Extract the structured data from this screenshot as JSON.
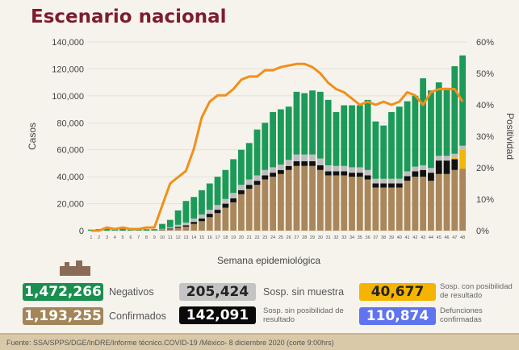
{
  "title": "Escenario nacional",
  "chart_data": {
    "type": "bar",
    "stacked": true,
    "title": "Escenario nacional",
    "xlabel": "Semana epidemiológica",
    "ylabel": "Casos",
    "y2label": "Positividad",
    "ylim": [
      0,
      140000
    ],
    "y2lim": [
      0,
      60
    ],
    "yticks": [
      "0",
      "20,000",
      "40,000",
      "60,000",
      "80,000",
      "100,000",
      "120,000",
      "140,000"
    ],
    "y2ticks": [
      "0%",
      "10%",
      "20%",
      "30%",
      "40%",
      "50%",
      "60%"
    ],
    "categories": [
      "1",
      "2",
      "3",
      "4",
      "5",
      "6",
      "7",
      "8",
      "9",
      "10",
      "11",
      "12",
      "13",
      "14",
      "15",
      "16",
      "17",
      "18",
      "19",
      "20",
      "21",
      "22",
      "23",
      "24",
      "25",
      "26",
      "27",
      "28",
      "29",
      "30",
      "31",
      "32",
      "33",
      "34",
      "35",
      "36",
      "37",
      "38",
      "39",
      "40",
      "41",
      "42",
      "43",
      "44",
      "45",
      "46",
      "47",
      "48"
    ],
    "series": [
      {
        "name": "Confirmados",
        "color": "#a9875b",
        "values": [
          0,
          0,
          0,
          0,
          0,
          0,
          0,
          50,
          100,
          500,
          1000,
          2000,
          3000,
          5000,
          7000,
          10000,
          13000,
          17000,
          21000,
          27000,
          31000,
          34000,
          38000,
          40000,
          42000,
          45000,
          48000,
          48000,
          48000,
          45000,
          41000,
          41000,
          41000,
          40000,
          40000,
          38000,
          32000,
          32000,
          32000,
          32000,
          37000,
          40000,
          40000,
          37000,
          42000,
          42000,
          45000,
          46000
        ]
      },
      {
        "name": "Sosp. sin posibilidad de resultado",
        "color": "#111111",
        "values": [
          0,
          0,
          0,
          0,
          0,
          0,
          0,
          0,
          0,
          300,
          500,
          800,
          1000,
          1500,
          2000,
          2500,
          2500,
          3000,
          3000,
          3000,
          3000,
          3000,
          3000,
          3000,
          3000,
          3000,
          3500,
          3500,
          3500,
          3500,
          3000,
          3000,
          3000,
          3000,
          3000,
          3000,
          3000,
          3000,
          3000,
          3000,
          3500,
          4000,
          5000,
          6000,
          10000,
          10000,
          8000,
          0
        ]
      },
      {
        "name": "Sosp. con posibilidad de resultado",
        "color": "#f2b705",
        "values": [
          0,
          0,
          0,
          0,
          0,
          0,
          0,
          0,
          0,
          0,
          0,
          0,
          0,
          0,
          0,
          0,
          0,
          0,
          0,
          0,
          0,
          0,
          0,
          0,
          0,
          0,
          0,
          0,
          0,
          0,
          0,
          0,
          0,
          0,
          0,
          0,
          0,
          0,
          0,
          0,
          0,
          0,
          0,
          0,
          0,
          0,
          1000,
          14000
        ]
      },
      {
        "name": "Sosp. sin muestra",
        "color": "#bdbdbd",
        "values": [
          0,
          0,
          0,
          0,
          0,
          0,
          0,
          0,
          0,
          500,
          1000,
          1500,
          2000,
          2500,
          3000,
          3000,
          3500,
          3500,
          4000,
          4000,
          4000,
          4000,
          4000,
          4000,
          4000,
          4500,
          5000,
          5000,
          5000,
          5000,
          4500,
          4000,
          4000,
          4000,
          4000,
          4000,
          3500,
          3500,
          3500,
          3500,
          3500,
          3500,
          3500,
          3500,
          3500,
          3500,
          3000,
          3000
        ]
      },
      {
        "name": "Negativos",
        "color": "#1b9a58",
        "values": [
          800,
          1200,
          1500,
          1200,
          1500,
          1200,
          1000,
          1000,
          1000,
          3700,
          5500,
          10700,
          16000,
          16000,
          18000,
          19500,
          21000,
          21500,
          25000,
          26000,
          27000,
          34000,
          35000,
          41000,
          41000,
          39500,
          46500,
          45500,
          47500,
          49500,
          48500,
          40000,
          45000,
          46000,
          46000,
          52000,
          42500,
          39500,
          49500,
          53500,
          52000,
          52500,
          64500,
          57500,
          54500,
          50500,
          65000,
          67000
        ]
      }
    ],
    "line": {
      "name": "Positividad",
      "color": "#f0901a",
      "values": [
        0,
        0,
        1,
        0.5,
        1,
        0.5,
        0.5,
        1,
        1,
        8,
        15,
        17,
        19,
        26,
        36,
        41,
        43,
        43,
        45,
        48,
        49,
        49,
        51,
        51,
        52,
        52.5,
        53,
        53,
        52,
        50,
        47,
        45,
        44,
        42,
        40,
        41,
        40,
        41,
        40,
        41,
        44,
        43,
        40,
        44,
        45,
        45,
        45,
        41
      ]
    }
  },
  "summary": [
    {
      "value": "1,472,266",
      "label": "Negativos",
      "color": "#1b8f50"
    },
    {
      "value": "205,424",
      "label": "Sosp. sin muestra",
      "color": "#c4c4c4"
    },
    {
      "value": "40,677",
      "label": "Sosp. con posibilidad de resultado",
      "color": "#f4b400"
    },
    {
      "value": "1,193,255",
      "label": "Confirmados",
      "color": "#a3855a"
    },
    {
      "value": "142,091",
      "label": "Sosp. sin posibilidad de resultado",
      "color": "#0a0a0a"
    },
    {
      "value": "110,874",
      "label": "Defunciones confirmadas",
      "color": "#5f74ee"
    }
  ],
  "footer": "Fuente: SSA/SPPS/DGE/InDRE/Informe técnico.COVID-19 /México- 8 diciembre 2020 (corte 9:00hrs)"
}
